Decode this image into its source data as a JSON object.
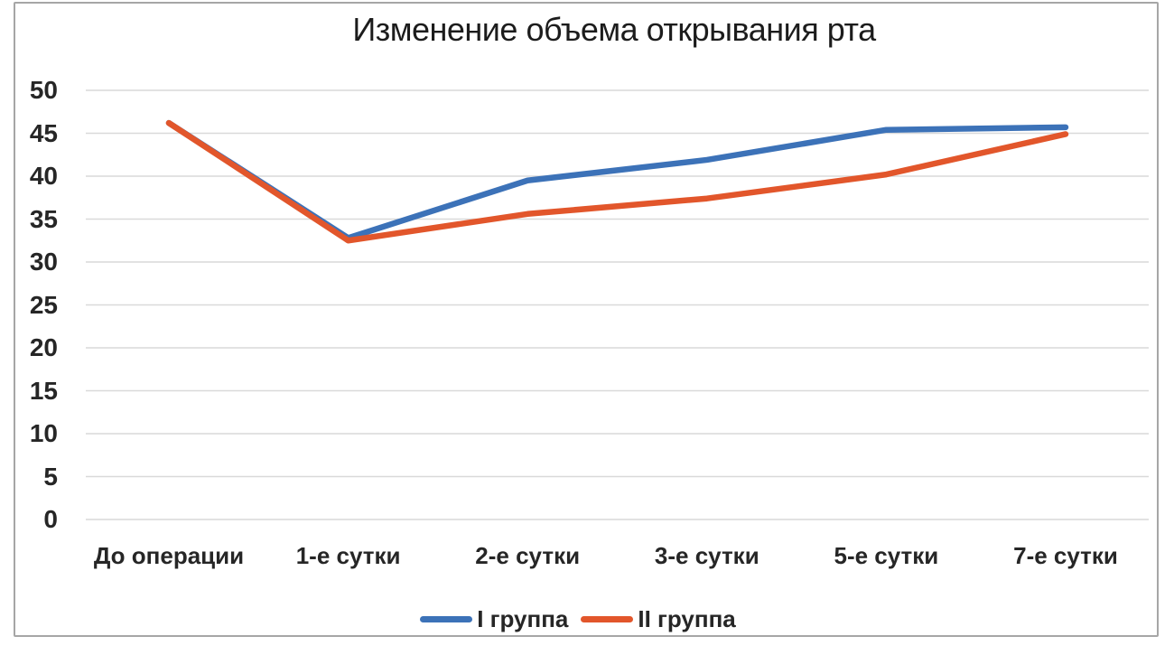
{
  "figure": {
    "background": "#ffffff",
    "frame_border_color": "#a6a6a6"
  },
  "chart_data": {
    "type": "line",
    "title": "Изменение объема открывания рта",
    "categories": [
      "До операции",
      "1-е сутки",
      "2-е сутки",
      "3-е сутки",
      "5-е сутки",
      "7-е сутки"
    ],
    "series": [
      {
        "name": "I группа",
        "color": "#3c72b8",
        "values": [
          46.2,
          32.8,
          39.5,
          41.9,
          45.4,
          45.7
        ]
      },
      {
        "name": "II группа",
        "color": "#e2562b",
        "values": [
          46.2,
          32.5,
          35.6,
          37.4,
          40.2,
          44.9
        ]
      }
    ],
    "xlabel": "",
    "ylabel": "",
    "ylim": [
      0,
      50
    ],
    "ytick_step": 5,
    "ytick_labels": [
      "0",
      "5",
      "10",
      "15",
      "20",
      "25",
      "30",
      "35",
      "40",
      "45",
      "50"
    ],
    "grid": true,
    "gridline_color": "#d9d9d9",
    "axis_text_color": "#262626",
    "legend_position": "bottom",
    "line_width": 6.5
  }
}
